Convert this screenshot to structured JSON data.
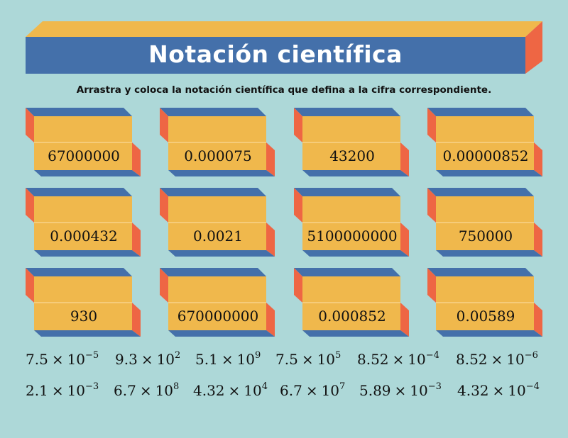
{
  "header": {
    "title": "Notación científica",
    "instructions": "Arrastra y coloca la notación científica que defina a la cifra correspondiente."
  },
  "colors": {
    "background": "#add8d8",
    "banner_front": "#4470aa",
    "banner_top": "#f0b84c",
    "banner_side": "#ee6644",
    "box_front": "#f0b84c",
    "box_top": "#4470aa",
    "box_side": "#ee6644"
  },
  "boxes": [
    {
      "number": "67000000"
    },
    {
      "number": "0.000075"
    },
    {
      "number": "43200"
    },
    {
      "number": "0.00000852"
    },
    {
      "number": "0.000432"
    },
    {
      "number": "0.0021"
    },
    {
      "number": "5100000000"
    },
    {
      "number": "750000"
    },
    {
      "number": "930"
    },
    {
      "number": "670000000"
    },
    {
      "number": "0.000852"
    },
    {
      "number": "0.00589"
    }
  ],
  "options": [
    {
      "mantissa": "7.5",
      "times": "×",
      "base": "10",
      "exponent": "−5"
    },
    {
      "mantissa": "9.3",
      "times": "×",
      "base": "10",
      "exponent": "2"
    },
    {
      "mantissa": "5.1",
      "times": "×",
      "base": "10",
      "exponent": "9"
    },
    {
      "mantissa": "7.5",
      "times": "×",
      "base": "10",
      "exponent": "5"
    },
    {
      "mantissa": "8.52",
      "times": "×",
      "base": "10",
      "exponent": "−4"
    },
    {
      "mantissa": "8.52",
      "times": "×",
      "base": "10",
      "exponent": "−6"
    },
    {
      "mantissa": "2.1",
      "times": "×",
      "base": "10",
      "exponent": "−3"
    },
    {
      "mantissa": "6.7",
      "times": "×",
      "base": "10",
      "exponent": "8"
    },
    {
      "mantissa": "4.32",
      "times": "×",
      "base": "10",
      "exponent": "4"
    },
    {
      "mantissa": "6.7",
      "times": "×",
      "base": "10",
      "exponent": "7"
    },
    {
      "mantissa": "5.89",
      "times": "×",
      "base": "10",
      "exponent": "−3"
    },
    {
      "mantissa": "4.32",
      "times": "×",
      "base": "10",
      "exponent": "−4"
    }
  ]
}
